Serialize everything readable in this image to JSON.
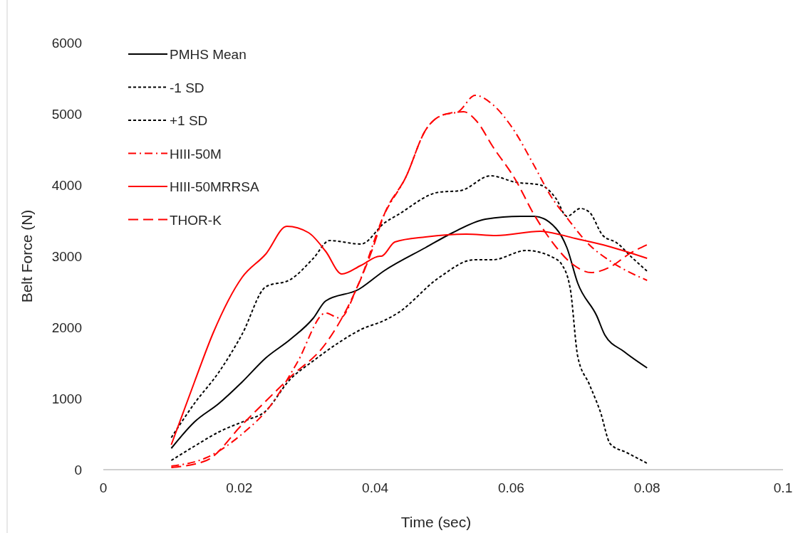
{
  "chart_data": {
    "type": "line",
    "xlabel": "Time (sec)",
    "ylabel": "Belt Force (N)",
    "xlim": [
      0,
      0.1
    ],
    "xticks": [
      0,
      0.02,
      0.04,
      0.06,
      0.08,
      0.1
    ],
    "ylim": [
      0,
      6000
    ],
    "yticks": [
      0,
      1000,
      2000,
      3000,
      4000,
      5000,
      6000
    ],
    "grid": false,
    "legend": "top left",
    "series": [
      {
        "name": "PMHS Mean",
        "color": "#000000",
        "line_style": "solid",
        "x": [
          0.01,
          0.0134,
          0.017,
          0.0204,
          0.0239,
          0.0275,
          0.0309,
          0.0327,
          0.0375,
          0.0414,
          0.0474,
          0.0514,
          0.0562,
          0.0614,
          0.0634,
          0.0666,
          0.0682,
          0.0698,
          0.0726,
          0.0738,
          0.0766,
          0.08
        ],
        "values": [
          300,
          670,
          930,
          1230,
          1570,
          1830,
          2130,
          2370,
          2530,
          2800,
          3120,
          3330,
          3520,
          3560,
          3560,
          3390,
          3120,
          2620,
          2160,
          1890,
          1660,
          1430
        ]
      },
      {
        "name": "-1 SD",
        "color": "#000000",
        "line_style": "dotted",
        "x": [
          0.01,
          0.0134,
          0.017,
          0.0212,
          0.0236,
          0.0275,
          0.0309,
          0.0344,
          0.0379,
          0.0414,
          0.0433,
          0.0494,
          0.0546,
          0.0573,
          0.0622,
          0.0666,
          0.0674,
          0.0687,
          0.0698,
          0.0715,
          0.0731,
          0.0746,
          0.077,
          0.08
        ],
        "values": [
          130,
          330,
          530,
          700,
          800,
          1270,
          1530,
          1770,
          1970,
          2100,
          2200,
          2700,
          2950,
          2950,
          3080,
          2960,
          2890,
          2540,
          1590,
          1200,
          820,
          360,
          240,
          90
        ]
      },
      {
        "name": "+1 SD",
        "color": "#000000",
        "line_style": "dotted",
        "x": [
          0.01,
          0.0134,
          0.017,
          0.0204,
          0.0239,
          0.0275,
          0.0309,
          0.0333,
          0.0379,
          0.0414,
          0.0433,
          0.0494,
          0.0525,
          0.057,
          0.0606,
          0.0643,
          0.0666,
          0.0682,
          0.0702,
          0.0715,
          0.0735,
          0.0755,
          0.0779,
          0.08
        ],
        "values": [
          450,
          930,
          1370,
          1900,
          2570,
          2670,
          2970,
          3220,
          3170,
          3470,
          3580,
          3900,
          3920,
          4130,
          4040,
          4000,
          3810,
          3560,
          3670,
          3620,
          3290,
          3190,
          2970,
          2790
        ]
      },
      {
        "name": "HIII-50M",
        "color": "#ff0000",
        "line_style": "dashdot",
        "x": [
          0.01,
          0.0152,
          0.0204,
          0.0246,
          0.0285,
          0.0327,
          0.0348,
          0.0375,
          0.0413,
          0.0445,
          0.0474,
          0.0498,
          0.0522,
          0.0547,
          0.0573,
          0.0602,
          0.0634,
          0.0658,
          0.0682,
          0.0715,
          0.0746,
          0.08
        ],
        "values": [
          50,
          170,
          500,
          900,
          1500,
          2200,
          2130,
          2600,
          3580,
          4110,
          4770,
          4980,
          5030,
          5260,
          5130,
          4800,
          4270,
          3850,
          3540,
          3160,
          2930,
          2660
        ]
      },
      {
        "name": "HIII-50MRRSA",
        "color": "#ff0000",
        "line_style": "solid",
        "x": [
          0.01,
          0.0134,
          0.0162,
          0.0204,
          0.0239,
          0.027,
          0.0302,
          0.0327,
          0.0351,
          0.0379,
          0.0407,
          0.0409,
          0.0429,
          0.0474,
          0.0534,
          0.0578,
          0.0643,
          0.0694,
          0.0735,
          0.08
        ],
        "values": [
          350,
          1230,
          1930,
          2700,
          3030,
          3420,
          3330,
          3070,
          2750,
          2870,
          3000,
          3000,
          3200,
          3270,
          3310,
          3290,
          3350,
          3250,
          3160,
          2970
        ]
      },
      {
        "name": "THOR-K",
        "color": "#ff0000",
        "line_style": "dashed",
        "x": [
          0.01,
          0.0152,
          0.0204,
          0.0275,
          0.0327,
          0.0362,
          0.0396,
          0.0413,
          0.0445,
          0.0474,
          0.0498,
          0.053,
          0.0549,
          0.0573,
          0.0606,
          0.0634,
          0.0658,
          0.069,
          0.0718,
          0.0746,
          0.0775,
          0.08
        ],
        "values": [
          30,
          130,
          630,
          1300,
          1770,
          2330,
          3100,
          3580,
          4110,
          4770,
          4980,
          5030,
          4900,
          4540,
          4080,
          3580,
          3230,
          2890,
          2770,
          2850,
          3040,
          3160
        ]
      }
    ]
  }
}
